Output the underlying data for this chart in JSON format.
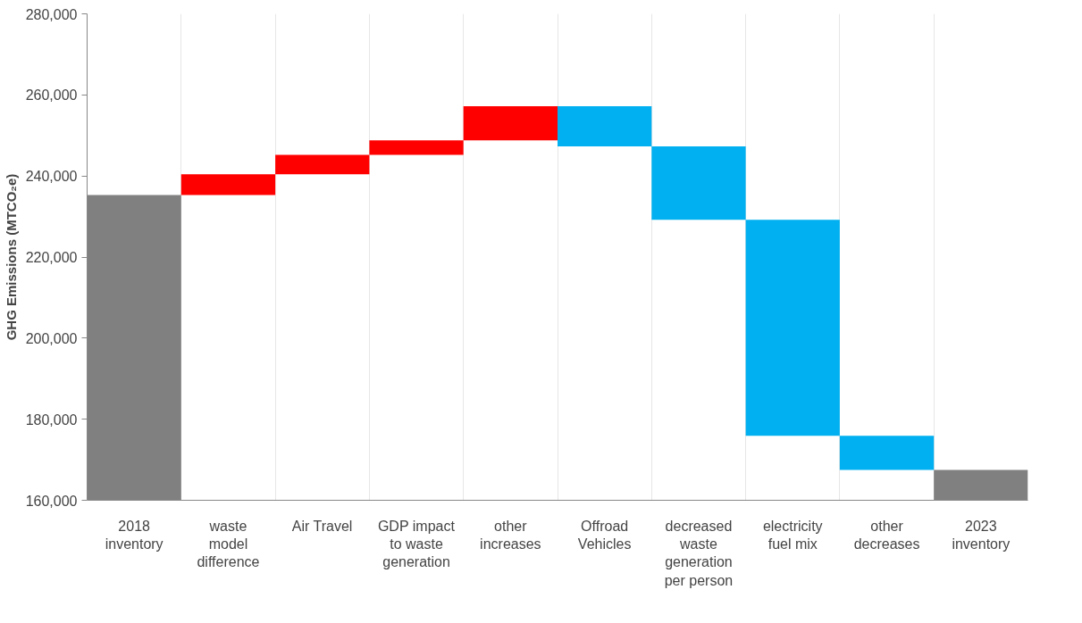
{
  "chart_data": {
    "type": "bar",
    "ylabel": "GHG Emissions (MTCO₂e)",
    "categories": [
      "2018 inventory",
      "waste model difference",
      "Air Travel",
      "GDP impact to waste generation",
      "other increases",
      "Offroad Vehicles",
      "decreased waste generation per person",
      "electricity fuel mix",
      "other decreases",
      "2023 inventory"
    ],
    "values": [
      235300,
      5100,
      4800,
      3600,
      8400,
      -9900,
      -18100,
      -53300,
      -8400,
      167500
    ],
    "base": [
      null,
      235300,
      240400,
      245200,
      248800,
      257200,
      247300,
      229200,
      175900,
      null
    ],
    "colors": [
      "#808080",
      "#ff0000",
      "#ff0000",
      "#ff0000",
      "#ff0000",
      "#00b0f0",
      "#00b0f0",
      "#00b0f0",
      "#00b0f0",
      "#808080"
    ],
    "ylim": [
      160000,
      280000
    ],
    "yticks": [
      {
        "value": 160000,
        "label": "160,000"
      },
      {
        "value": 180000,
        "label": "180,000"
      },
      {
        "value": 200000,
        "label": "200,000"
      },
      {
        "value": 220000,
        "label": "220,000"
      },
      {
        "value": 240000,
        "label": "240,000"
      },
      {
        "value": 260000,
        "label": "260,000"
      },
      {
        "value": 280000,
        "label": "280,000"
      }
    ],
    "grid": "x"
  }
}
